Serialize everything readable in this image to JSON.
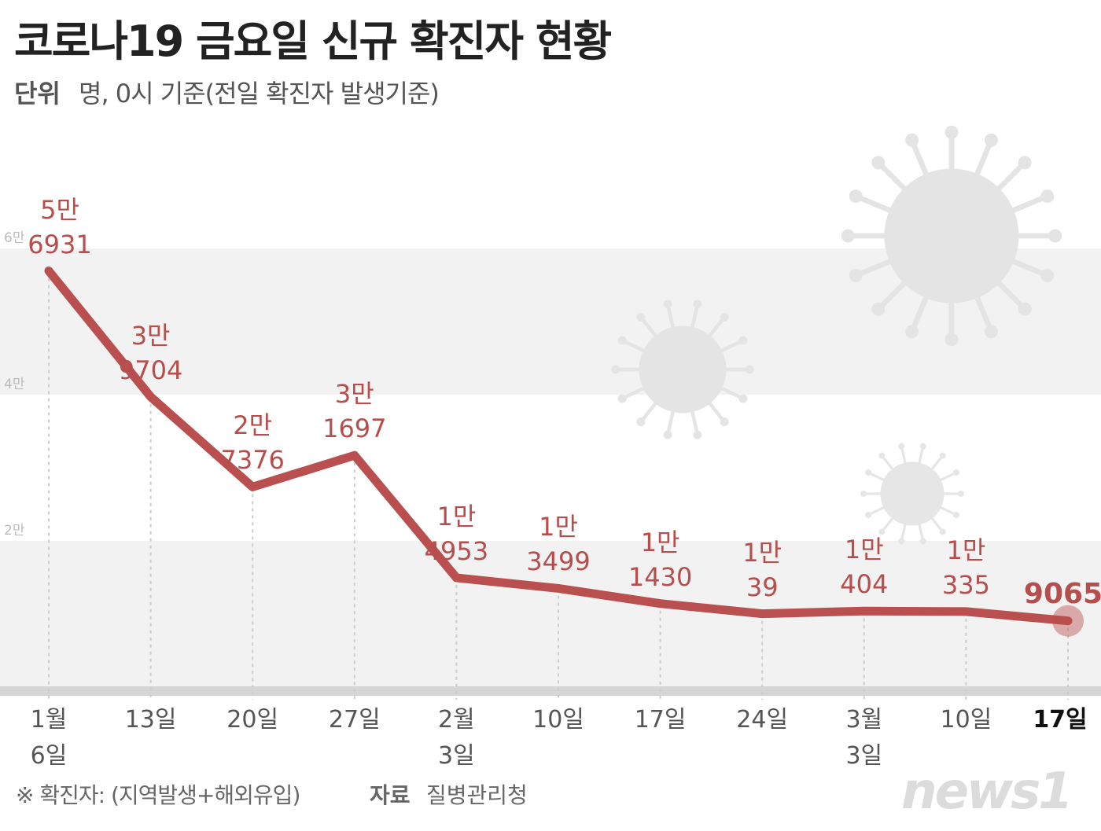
{
  "title": "코로나19 금요일 신규 확진자 현황",
  "unit": {
    "label": "단위",
    "text": "명, 0시 기준(전일 확진자 발생기준)"
  },
  "chart_data": {
    "type": "line",
    "categories": [
      "1월\n6일",
      "13일",
      "20일",
      "27일",
      "2월\n3일",
      "10일",
      "17일",
      "24일",
      "3월\n3일",
      "10일",
      "17일"
    ],
    "values": [
      56931,
      39704,
      27376,
      31697,
      14953,
      13499,
      11430,
      10039,
      10404,
      10335,
      9065
    ],
    "value_labels": [
      "5만\n6931",
      "3만\n9704",
      "2만\n7376",
      "3만\n1697",
      "1만\n4953",
      "1만\n3499",
      "1만\n1430",
      "1만\n39",
      "1만\n404",
      "1만\n335",
      "9065"
    ],
    "color": "#b94f4e",
    "ylim": [
      0,
      60000
    ],
    "yticks": [
      {
        "value": 20000,
        "label": "2만"
      },
      {
        "value": 40000,
        "label": "4만"
      },
      {
        "value": 60000,
        "label": "6만"
      }
    ]
  },
  "footer": {
    "note": "※ 확진자: (지역발생+해외유입)",
    "source_label": "자료",
    "source": "질병관리청",
    "logo": "news1"
  }
}
